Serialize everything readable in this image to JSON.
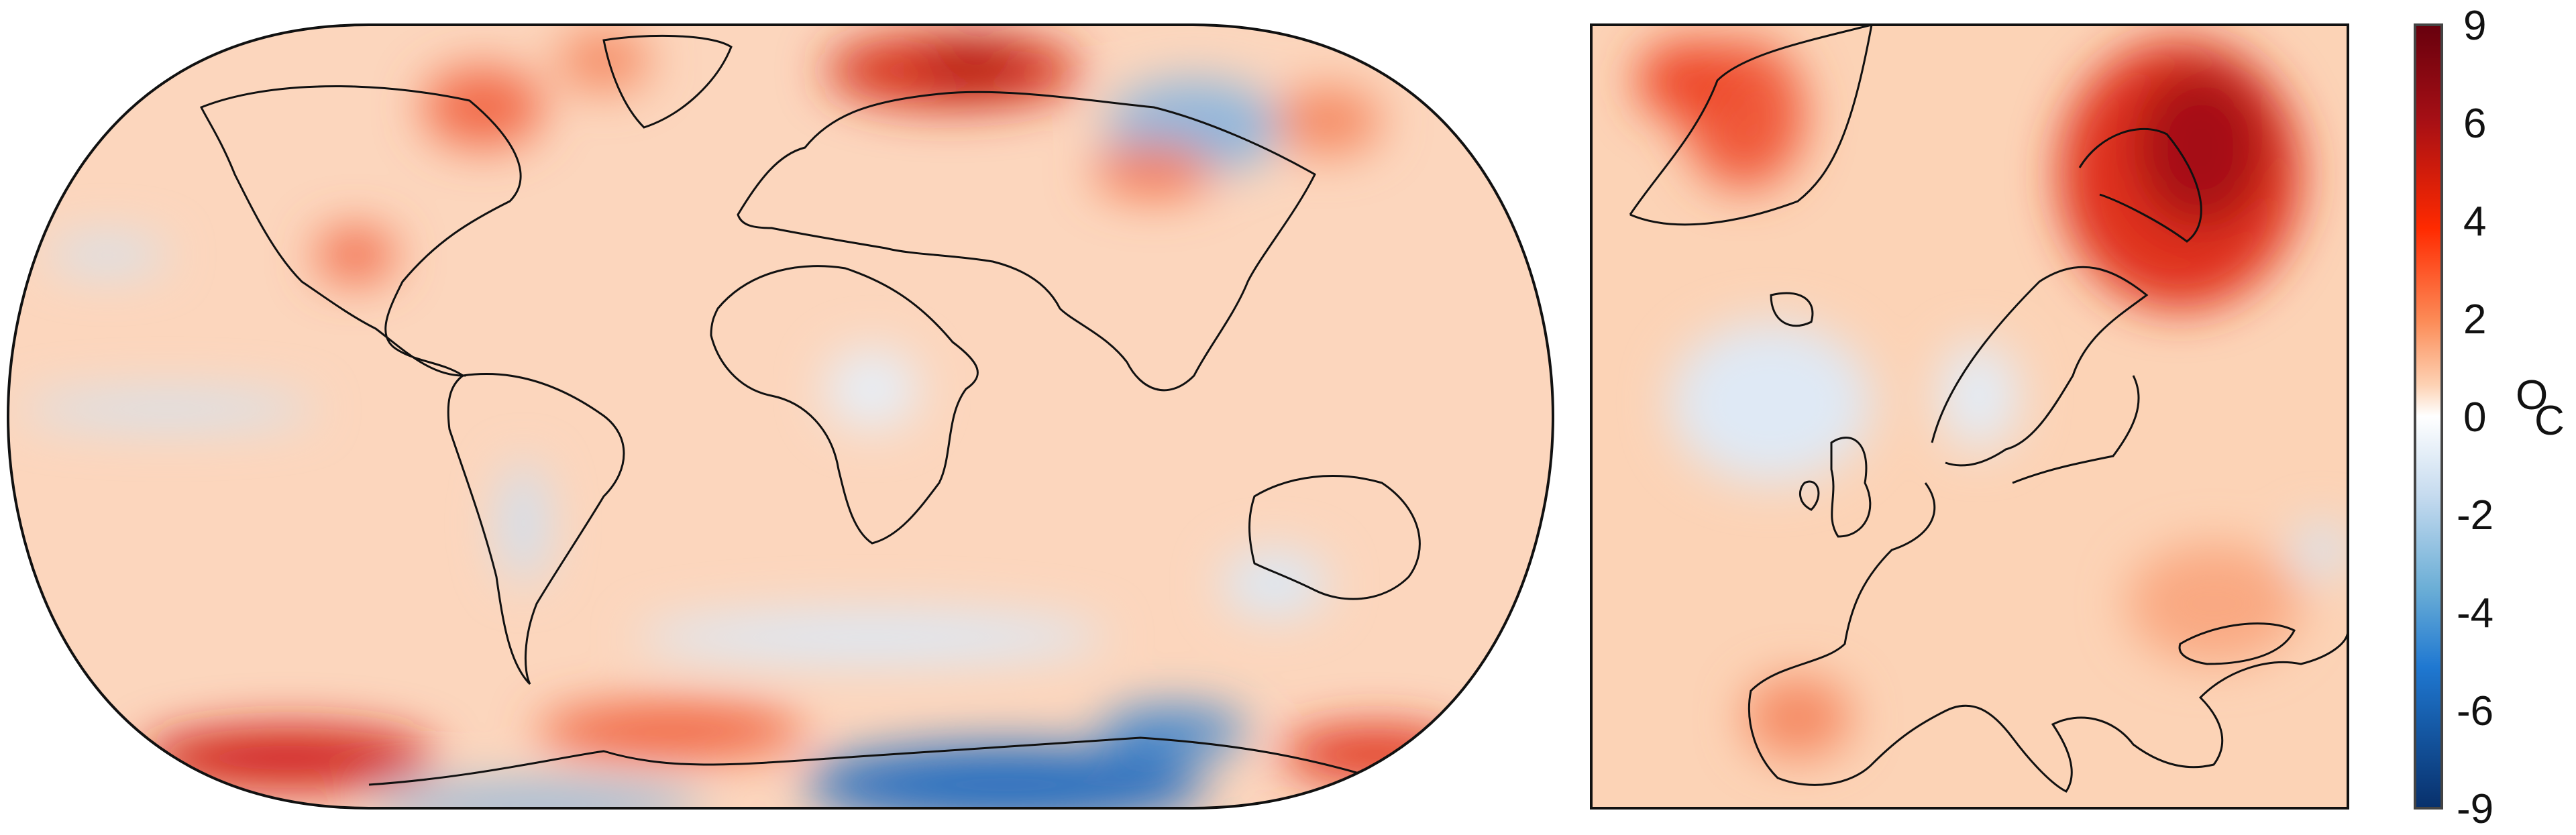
{
  "colorbar": {
    "ticks": [
      "9",
      "6",
      "4",
      "2",
      "0",
      "-2",
      "-4",
      "-6",
      "-9"
    ],
    "unit_superscript": "O",
    "unit": "C",
    "colors": [
      "#67000d",
      "#a50f15",
      "#ff2a00",
      "#fc8d59",
      "#fee8d8",
      "#ffffff",
      "#c6dbef",
      "#6baed6",
      "#1f78d1",
      "#08306b"
    ]
  },
  "panels": [
    {
      "name": "global-map",
      "projection": "Robinson"
    },
    {
      "name": "europe-map",
      "projection": "regional"
    }
  ]
}
